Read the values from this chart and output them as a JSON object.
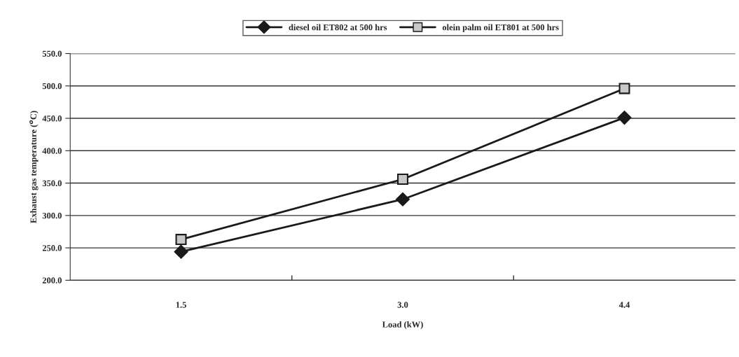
{
  "chart_data": {
    "type": "line",
    "xlabel": "Load (kW)",
    "ylabel": "Exhaust gas temperature ($^{o}$C)",
    "categories": [
      "1.5",
      "3.0",
      "4.4"
    ],
    "series": [
      {
        "name": "diesel oil ET802 at 500 hrs",
        "color": "#1a1a1a",
        "marker": "diamond",
        "values": [
          244,
          325,
          451
        ]
      },
      {
        "name": "olein palm oil ET801 at 500 hrs",
        "color": "#1a1a1a",
        "marker": "square",
        "values": [
          263,
          356,
          496
        ]
      }
    ],
    "ylim": [
      200,
      550
    ],
    "yticks": [
      {
        "value": 200,
        "label": "200.0"
      },
      {
        "value": 250,
        "label": "250.0"
      },
      {
        "value": 300,
        "label": "300.0"
      },
      {
        "value": 350,
        "label": "350.0"
      },
      {
        "value": 400,
        "label": "400.0"
      },
      {
        "value": 450,
        "label": "450.0"
      },
      {
        "value": 500,
        "label": "500.0"
      },
      {
        "value": 550,
        "label": "550.0"
      }
    ],
    "grid": "y",
    "legend": "top",
    "line_style": "solid"
  }
}
